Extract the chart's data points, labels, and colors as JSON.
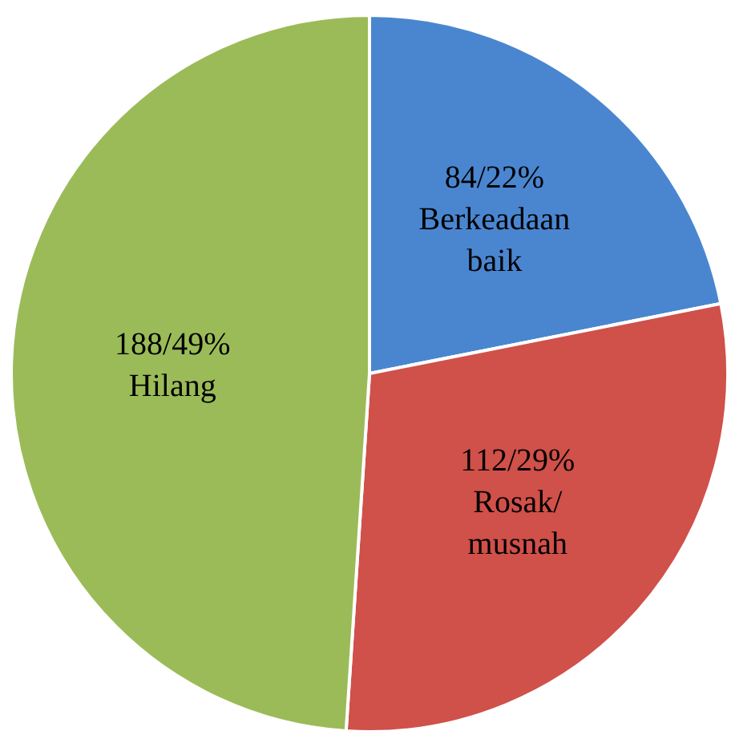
{
  "chart_data": {
    "type": "pie",
    "categories": [
      "Berkeadaan baik",
      "Rosak/ musnah",
      "Hilang"
    ],
    "values": [
      84,
      112,
      188
    ],
    "colors": [
      "#4a86d0",
      "#d0504a",
      "#9bbb59"
    ],
    "value_labels": [
      "84/22%",
      "112/29%",
      "188/49%"
    ],
    "legend": false
  }
}
